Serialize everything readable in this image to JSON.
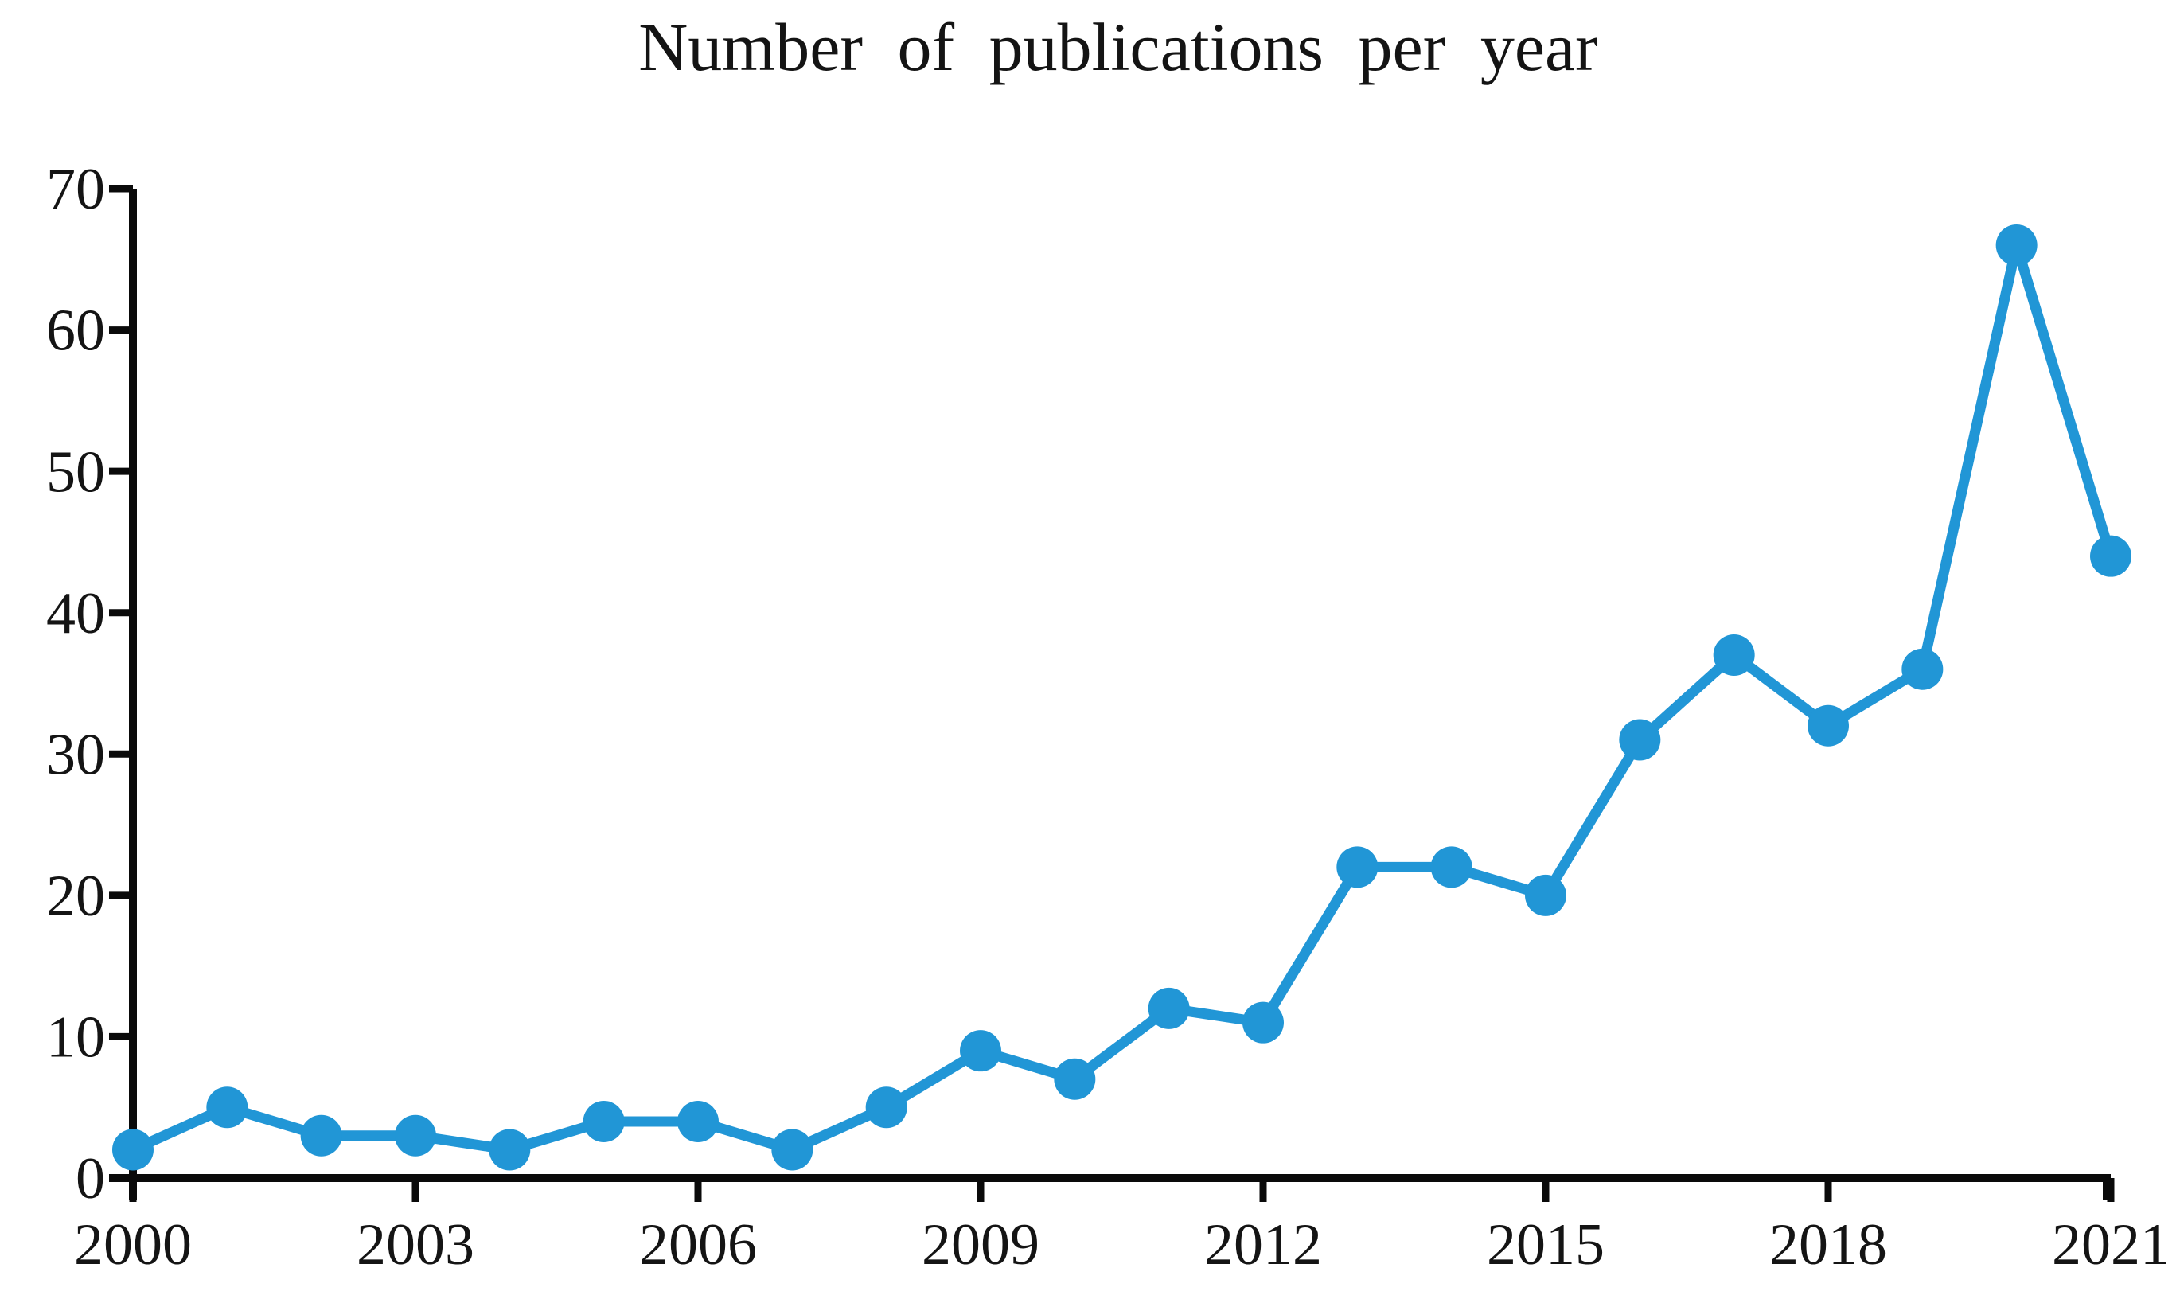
{
  "chart_data": {
    "type": "line",
    "title": "Number of publications per year",
    "series_name": "publications-per-year",
    "x": [
      2000,
      2001,
      2002,
      2003,
      2004,
      2005,
      2006,
      2007,
      2008,
      2009,
      2010,
      2011,
      2012,
      2013,
      2014,
      2015,
      2016,
      2017,
      2018,
      2019,
      2020,
      2021
    ],
    "values": [
      2,
      5,
      3,
      3,
      2,
      4,
      4,
      2,
      5,
      9,
      7,
      12,
      11,
      22,
      22,
      20,
      31,
      37,
      32,
      36,
      66,
      44
    ],
    "xlabel": "",
    "ylabel": "",
    "xlim": [
      2000,
      2021
    ],
    "ylim": [
      0,
      70
    ],
    "yticks": [
      0,
      10,
      20,
      30,
      40,
      50,
      60,
      70
    ],
    "xticks": [
      2000,
      2003,
      2006,
      2009,
      2012,
      2015,
      2018,
      2021
    ],
    "grid": false,
    "legend": "none",
    "marker": "circle",
    "line_color": "#2196d6",
    "marker_color": "#2196d6",
    "axis_color": "#0a0a0a",
    "background_color": "#ffffff"
  }
}
